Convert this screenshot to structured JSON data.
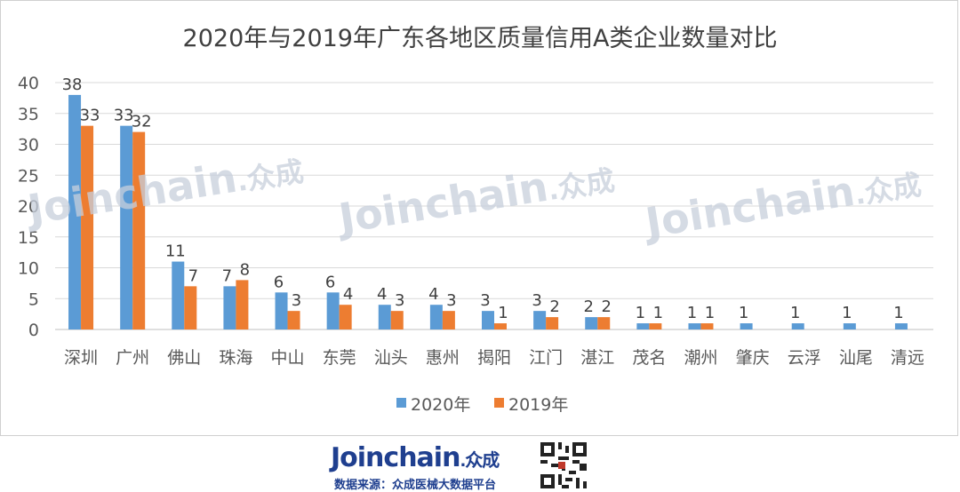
{
  "chart_data": {
    "type": "bar",
    "title": "2020年与2019年广东各地区质量信用A类企业数量对比",
    "categories": [
      "深圳",
      "广州",
      "佛山",
      "珠海",
      "中山",
      "东莞",
      "汕头",
      "惠州",
      "揭阳",
      "江门",
      "湛江",
      "茂名",
      "潮州",
      "肇庆",
      "云浮",
      "汕尾",
      "清远"
    ],
    "series": [
      {
        "name": "2020年",
        "color": "#5b9bd5",
        "values": [
          38,
          33,
          11,
          7,
          6,
          6,
          4,
          4,
          3,
          3,
          2,
          1,
          1,
          1,
          1,
          1,
          1
        ]
      },
      {
        "name": "2019年",
        "color": "#ed7d31",
        "values": [
          33,
          32,
          7,
          8,
          3,
          4,
          3,
          3,
          1,
          2,
          2,
          1,
          1,
          0,
          0,
          0,
          0
        ]
      }
    ],
    "ylim": [
      0,
      40
    ],
    "yticks": [
      0,
      5,
      10,
      15,
      20,
      25,
      30,
      35,
      40
    ],
    "grid": true,
    "legend_position": "bottom"
  },
  "watermark": {
    "text_latin": "Joinchain",
    "text_cn": "众成"
  },
  "footer": {
    "logo_latin": "Joinchain",
    "logo_cn": "众成",
    "source": "数据来源：众成医械大数据平台"
  }
}
